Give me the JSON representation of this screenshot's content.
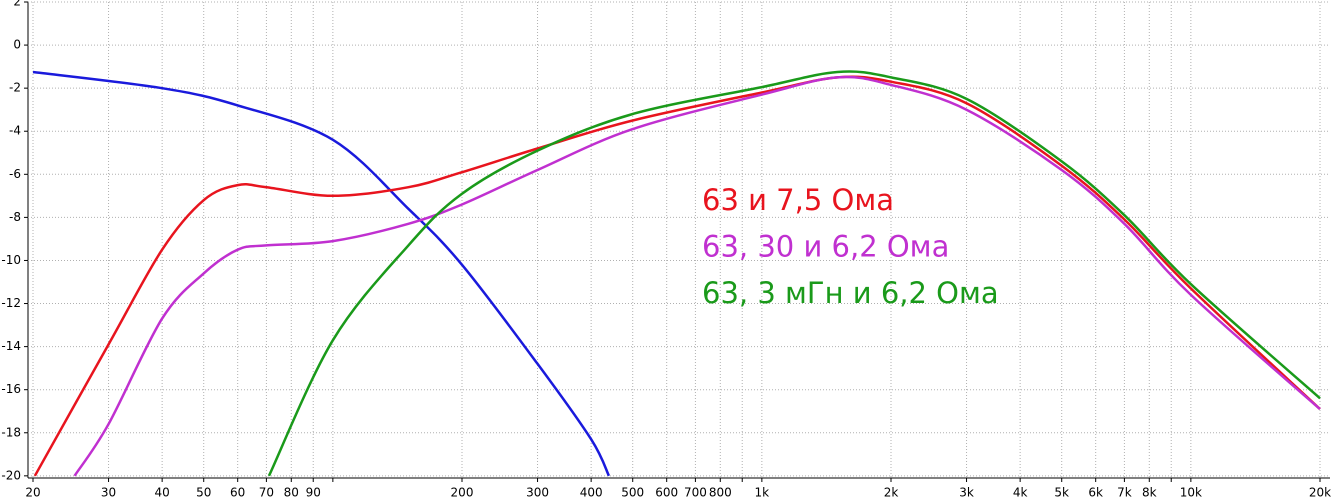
{
  "chart_data": {
    "type": "line",
    "x_scale": "log",
    "grid": true,
    "xlim": [
      20,
      20000
    ],
    "ylim": [
      -20.1,
      2
    ],
    "xticks": [
      {
        "value": 20,
        "label": "20"
      },
      {
        "value": 30,
        "label": "30"
      },
      {
        "value": 40,
        "label": "40"
      },
      {
        "value": 50,
        "label": "50"
      },
      {
        "value": 60,
        "label": "60"
      },
      {
        "value": 70,
        "label": "70"
      },
      {
        "value": 80,
        "label": "80"
      },
      {
        "value": 90,
        "label": "90"
      },
      {
        "value": 100,
        "label": null
      },
      {
        "value": 200,
        "label": "200"
      },
      {
        "value": 300,
        "label": "300"
      },
      {
        "value": 400,
        "label": "400"
      },
      {
        "value": 500,
        "label": "500"
      },
      {
        "value": 600,
        "label": "600"
      },
      {
        "value": 700,
        "label": "700"
      },
      {
        "value": 800,
        "label": "800"
      },
      {
        "value": 900,
        "label": null
      },
      {
        "value": 1000,
        "label": "1k"
      },
      {
        "value": 2000,
        "label": "2k"
      },
      {
        "value": 3000,
        "label": "3k"
      },
      {
        "value": 4000,
        "label": "4k"
      },
      {
        "value": 5000,
        "label": "5k"
      },
      {
        "value": 6000,
        "label": "6k"
      },
      {
        "value": 7000,
        "label": "7k"
      },
      {
        "value": 8000,
        "label": "8k"
      },
      {
        "value": 9000,
        "label": null
      },
      {
        "value": 10000,
        "label": "10k"
      },
      {
        "value": 20000,
        "label": "20k"
      }
    ],
    "yticks": [
      2,
      0,
      -2,
      -4,
      -6,
      -8,
      -10,
      -12,
      -14,
      -16,
      -18,
      -20
    ],
    "series": [
      {
        "name": null,
        "color": "#1a1adc",
        "x": [
          20,
          40,
          60,
          100,
          150,
          200,
          300,
          400,
          440
        ],
        "values": [
          -1.25,
          -2.0,
          -2.8,
          -4.4,
          -7.6,
          -10.2,
          -14.8,
          -18.3,
          -20.0
        ]
      },
      {
        "name": "63 и 7,5 Ома",
        "color": "#e8141e",
        "x": [
          20.2,
          30,
          40,
          50,
          60,
          70,
          100,
          150,
          200,
          300,
          500,
          1000,
          1500,
          2000,
          3000,
          5000,
          7000,
          10000,
          20000
        ],
        "values": [
          -20.0,
          -13.9,
          -9.5,
          -7.2,
          -6.5,
          -6.6,
          -7.0,
          -6.6,
          -5.9,
          -4.8,
          -3.5,
          -2.2,
          -1.5,
          -1.7,
          -2.7,
          -5.6,
          -8.1,
          -11.3,
          -16.9
        ]
      },
      {
        "name": "63, 30 и 6,2 Ома",
        "color": "#c030d0",
        "x": [
          25,
          30,
          40,
          50,
          60,
          70,
          100,
          150,
          200,
          300,
          500,
          1000,
          1500,
          2000,
          3000,
          5000,
          7000,
          10000,
          20000
        ],
        "values": [
          -20.0,
          -17.6,
          -12.7,
          -10.6,
          -9.5,
          -9.3,
          -9.1,
          -8.3,
          -7.4,
          -5.8,
          -3.9,
          -2.3,
          -1.5,
          -1.85,
          -3.0,
          -5.8,
          -8.3,
          -11.6,
          -16.9
        ]
      },
      {
        "name": "63, 3 мГн и 6,2 Ома",
        "color": "#1a9a1a",
        "x": [
          71,
          100,
          150,
          200,
          300,
          500,
          1000,
          1500,
          2000,
          3000,
          5000,
          7000,
          10000,
          20000
        ],
        "values": [
          -20.0,
          -13.7,
          -9.3,
          -6.9,
          -4.9,
          -3.2,
          -1.95,
          -1.25,
          -1.5,
          -2.5,
          -5.4,
          -7.9,
          -11.1,
          -16.4
        ]
      }
    ]
  }
}
